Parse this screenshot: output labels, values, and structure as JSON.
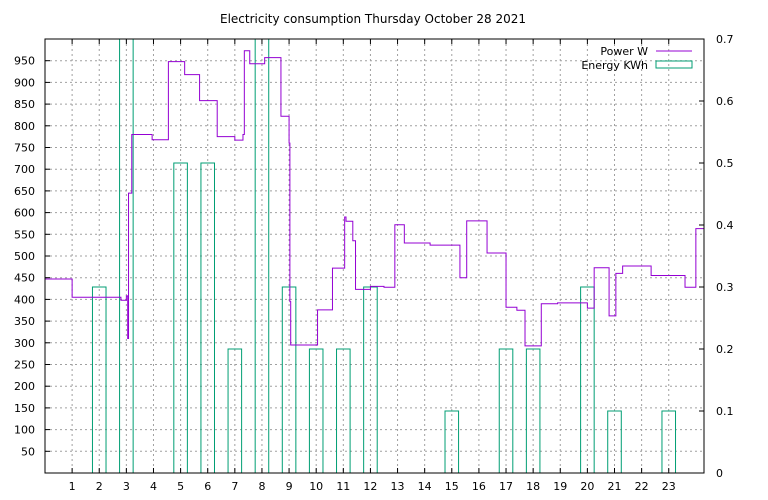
{
  "chart_data": {
    "type": "line",
    "title": "Electricity consumption Thursday October 28 2021",
    "xlabel": "",
    "ylabel": "",
    "xlim": [
      0,
      24.3
    ],
    "ylim": [
      0,
      1000
    ],
    "y2lim": [
      0,
      0.7
    ],
    "xticks": [
      1,
      2,
      3,
      4,
      5,
      6,
      7,
      8,
      9,
      10,
      11,
      12,
      13,
      14,
      15,
      16,
      17,
      18,
      19,
      20,
      21,
      22,
      23
    ],
    "yticks": [
      50,
      100,
      150,
      200,
      250,
      300,
      350,
      400,
      450,
      500,
      550,
      600,
      650,
      700,
      750,
      800,
      850,
      900,
      950
    ],
    "y2ticks": [
      0,
      0.1,
      0.2,
      0.3,
      0.4,
      0.5,
      0.6,
      0.7
    ],
    "y2ticklabels": [
      "0",
      "0.1",
      "0.2",
      "0.3",
      "0.4",
      "0.5",
      "0.6",
      "0.7"
    ],
    "grid": true,
    "legend_position": "top-right",
    "colors": {
      "power": "#9400d3",
      "energy": "#009e73"
    },
    "series": [
      {
        "name": "Power W",
        "axis": "y",
        "style": "steps",
        "points": [
          [
            0,
            447
          ],
          [
            1.0,
            447
          ],
          [
            1.0,
            405
          ],
          [
            2.8,
            405
          ],
          [
            2.8,
            398
          ],
          [
            3.0,
            398
          ],
          [
            3.0,
            408
          ],
          [
            3.05,
            408
          ],
          [
            3.05,
            310
          ],
          [
            3.08,
            310
          ],
          [
            3.08,
            645
          ],
          [
            3.2,
            645
          ],
          [
            3.2,
            780
          ],
          [
            3.95,
            780
          ],
          [
            3.95,
            768
          ],
          [
            4.55,
            768
          ],
          [
            4.55,
            948
          ],
          [
            5.15,
            948
          ],
          [
            5.15,
            918
          ],
          [
            5.7,
            918
          ],
          [
            5.7,
            858
          ],
          [
            6.35,
            858
          ],
          [
            6.35,
            775
          ],
          [
            7.0,
            775
          ],
          [
            7.0,
            767
          ],
          [
            7.3,
            767
          ],
          [
            7.3,
            780
          ],
          [
            7.35,
            780
          ],
          [
            7.35,
            973
          ],
          [
            7.55,
            973
          ],
          [
            7.55,
            943
          ],
          [
            8.1,
            943
          ],
          [
            8.1,
            957
          ],
          [
            8.7,
            957
          ],
          [
            8.7,
            822
          ],
          [
            9.0,
            822
          ],
          [
            9.0,
            760
          ],
          [
            9.03,
            760
          ],
          [
            9.03,
            395
          ],
          [
            9.06,
            395
          ],
          [
            9.06,
            295
          ],
          [
            10.05,
            295
          ],
          [
            10.05,
            376
          ],
          [
            10.6,
            376
          ],
          [
            10.6,
            472
          ],
          [
            11.05,
            472
          ],
          [
            11.05,
            590
          ],
          [
            11.1,
            590
          ],
          [
            11.1,
            580
          ],
          [
            11.35,
            580
          ],
          [
            11.35,
            535
          ],
          [
            11.45,
            535
          ],
          [
            11.45,
            423
          ],
          [
            12.0,
            423
          ],
          [
            12.0,
            430
          ],
          [
            12.5,
            430
          ],
          [
            12.5,
            428
          ],
          [
            12.9,
            428
          ],
          [
            12.9,
            572
          ],
          [
            13.25,
            572
          ],
          [
            13.25,
            530
          ],
          [
            14.2,
            530
          ],
          [
            14.2,
            525
          ],
          [
            15.3,
            525
          ],
          [
            15.3,
            450
          ],
          [
            15.55,
            450
          ],
          [
            15.55,
            581
          ],
          [
            16.3,
            581
          ],
          [
            16.3,
            507
          ],
          [
            17.0,
            507
          ],
          [
            17.0,
            382
          ],
          [
            17.4,
            382
          ],
          [
            17.4,
            375
          ],
          [
            17.7,
            375
          ],
          [
            17.7,
            293
          ],
          [
            18.3,
            293
          ],
          [
            18.3,
            390
          ],
          [
            18.9,
            390
          ],
          [
            18.9,
            392
          ],
          [
            20.0,
            392
          ],
          [
            20.0,
            380
          ],
          [
            20.25,
            380
          ],
          [
            20.25,
            473
          ],
          [
            20.8,
            473
          ],
          [
            20.8,
            362
          ],
          [
            21.05,
            362
          ],
          [
            21.05,
            460
          ],
          [
            21.3,
            460
          ],
          [
            21.3,
            477
          ],
          [
            22.35,
            477
          ],
          [
            22.35,
            455
          ],
          [
            23.6,
            455
          ],
          [
            23.6,
            428
          ],
          [
            24.0,
            428
          ],
          [
            24.0,
            563
          ],
          [
            24.3,
            563
          ]
        ]
      },
      {
        "name": "Energy KWh",
        "axis": "y2",
        "style": "boxes",
        "x": [
          2,
          3,
          5,
          6,
          7,
          8,
          9,
          10,
          11,
          12,
          15,
          17,
          18,
          20,
          21,
          23
        ],
        "values": [
          0.3,
          0.7,
          0.5,
          0.5,
          0.2,
          0.7,
          0.3,
          0.2,
          0.2,
          0.3,
          0.1,
          0.2,
          0.2,
          0.3,
          0.1,
          0.1
        ],
        "box_width": 0.5
      }
    ]
  }
}
